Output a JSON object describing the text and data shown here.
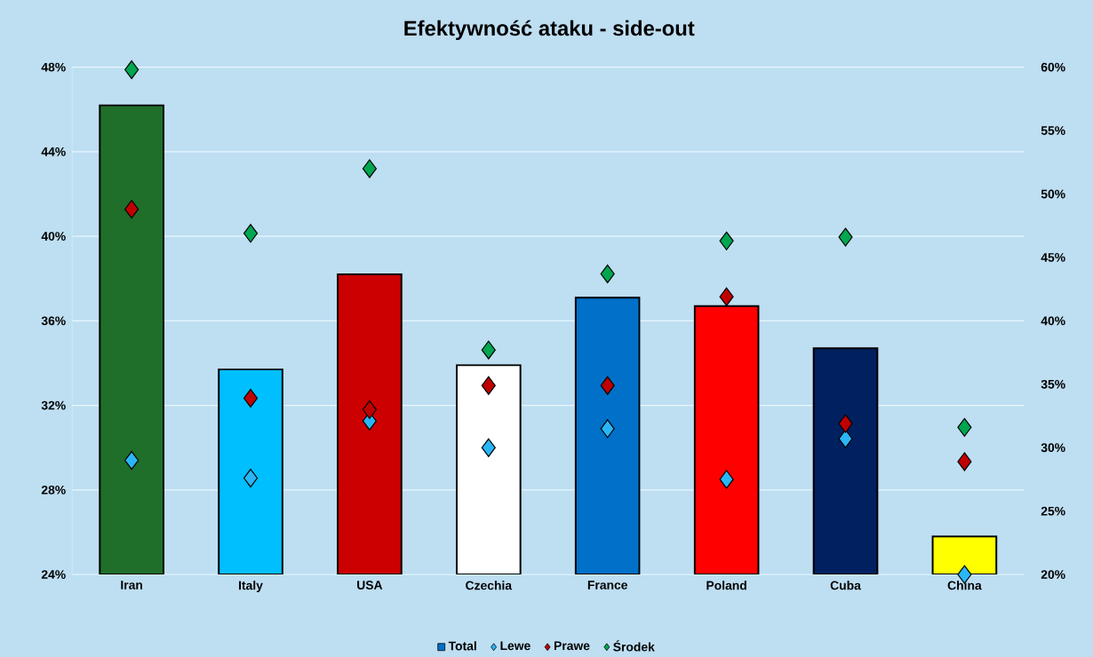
{
  "chart_data": {
    "type": "bar",
    "title": "Efektywność ataku - side-out",
    "categories": [
      "Iran",
      "Italy",
      "USA",
      "Czechia",
      "France",
      "Poland",
      "Cuba",
      "China"
    ],
    "series": [
      {
        "name": "Total",
        "color": "#0070c8",
        "colors": [
          "#1f6e2a",
          "#00bfff",
          "#cc0000",
          "#ffffff",
          "#0070c8",
          "#ff0000",
          "#002060",
          "#ffff00"
        ],
        "values": [
          46.2,
          33.7,
          38.2,
          33.9,
          37.1,
          36.7,
          34.7,
          25.8
        ]
      },
      {
        "name": "Lewe",
        "type": "scatter",
        "axis": "y2",
        "color": "#29b6f6",
        "values": [
          29.0,
          27.6,
          32.1,
          30.0,
          31.5,
          27.5,
          30.7,
          20.0
        ]
      },
      {
        "name": "Prawe",
        "type": "scatter",
        "axis": "y2",
        "color": "#c00000",
        "values": [
          48.8,
          33.9,
          33.0,
          34.9,
          34.9,
          41.9,
          31.9,
          28.9
        ]
      },
      {
        "name": "Środek",
        "type": "scatter",
        "axis": "y2",
        "color": "#00a650",
        "values": [
          59.8,
          46.9,
          52.0,
          37.7,
          43.7,
          46.3,
          46.6,
          31.6
        ]
      }
    ],
    "ylim": [
      24,
      48
    ],
    "yticks": [
      {
        "value": 24,
        "label": "24%"
      },
      {
        "value": 28,
        "label": "28%"
      },
      {
        "value": 32,
        "label": "32%"
      },
      {
        "value": 36,
        "label": "36%"
      },
      {
        "value": 40,
        "label": "40%"
      },
      {
        "value": 44,
        "label": "44%"
      },
      {
        "value": 48,
        "label": "48%"
      }
    ],
    "y2lim": [
      20,
      60
    ],
    "y2ticks": [
      {
        "value": 20,
        "label": "20%"
      },
      {
        "value": 25,
        "label": "25%"
      },
      {
        "value": 30,
        "label": "30%"
      },
      {
        "value": 35,
        "label": "35%"
      },
      {
        "value": 40,
        "label": "40%"
      },
      {
        "value": 45,
        "label": "45%"
      },
      {
        "value": 50,
        "label": "50%"
      },
      {
        "value": 55,
        "label": "55%"
      },
      {
        "value": 60,
        "label": "60%"
      }
    ],
    "grid": "y",
    "legend": "bottom",
    "marker": "diamond"
  }
}
